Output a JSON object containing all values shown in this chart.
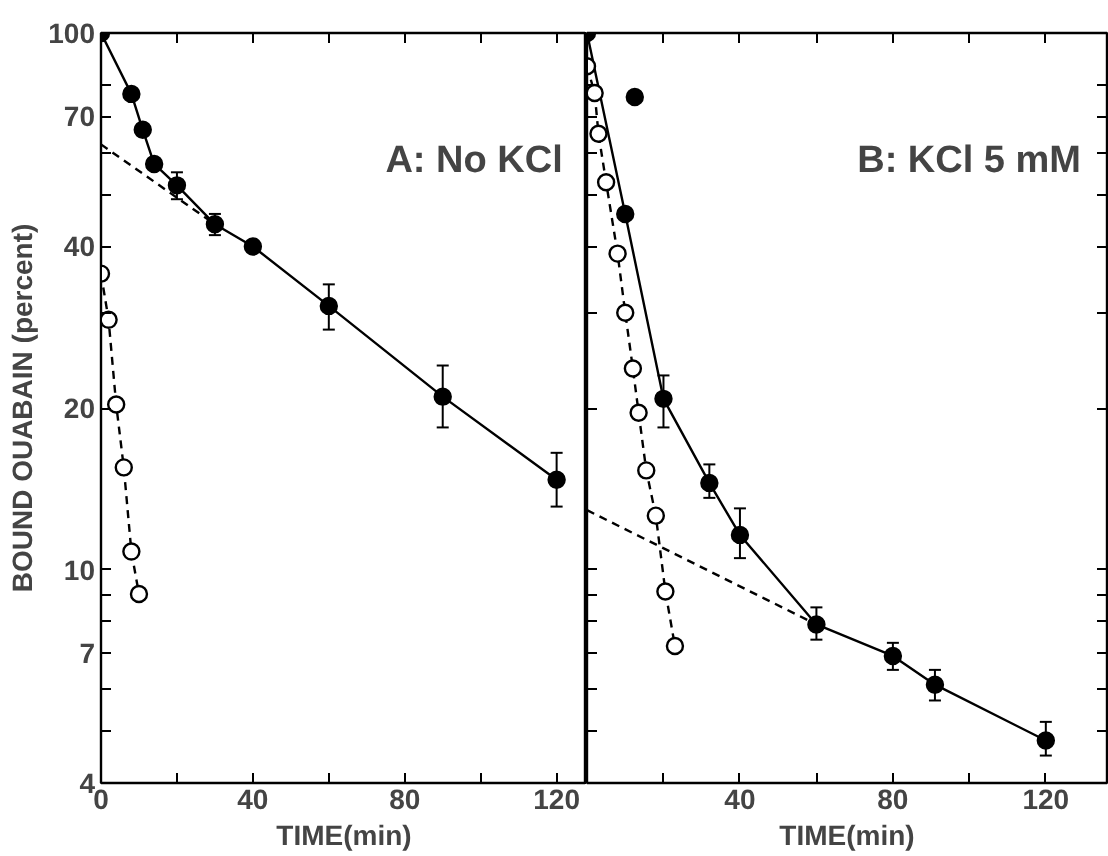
{
  "chart_data": [
    {
      "type": "line",
      "ylabel": "BOUND OUABAIN (percent)",
      "xlabel": "TIME(min)",
      "log": "y",
      "grid": false,
      "annotations": [
        "A: No KCl"
      ],
      "xlim": [
        0,
        128
      ],
      "ylim": [
        4,
        100
      ],
      "xticks": [
        0,
        {
          "value": 20,
          "label": null
        },
        40,
        {
          "value": 60,
          "label": null
        },
        80,
        {
          "value": 100,
          "label": null
        },
        120
      ],
      "yticks": [
        4,
        {
          "value": 5,
          "label": null
        },
        {
          "value": 6,
          "label": null
        },
        7,
        {
          "value": 8,
          "label": null
        },
        {
          "value": 9,
          "label": null
        },
        10,
        20,
        {
          "value": 30,
          "label": null
        },
        40,
        {
          "value": 50,
          "label": null
        },
        {
          "value": 60,
          "label": null
        },
        70,
        {
          "value": 80,
          "label": null
        },
        100
      ],
      "series": [
        {
          "color": "#000000",
          "marker": "circle",
          "line_style": "solid",
          "x": [
            0,
            8,
            11,
            14,
            20,
            30,
            40,
            60,
            90,
            120
          ],
          "values": [
            100,
            77,
            66,
            57,
            52,
            44,
            40,
            31,
            21,
            14.7
          ],
          "errors": [
            null,
            null,
            null,
            null,
            [
              49,
              55
            ],
            [
              42,
              46
            ],
            null,
            [
              28,
              34
            ],
            [
              18.4,
              24
            ],
            [
              13.1,
              16.5
            ]
          ]
        },
        {
          "color": "#000000",
          "marker": "circle",
          "line_style": "dashed",
          "x": [
            0,
            2,
            4,
            6,
            8,
            10
          ],
          "values": [
            35.6,
            29.2,
            20.3,
            15.5,
            10.8,
            9.0
          ]
        },
        {
          "color": "#000000",
          "marker": "none",
          "line_style": "dashed",
          "x": [
            0,
            30
          ],
          "values": [
            62,
            44
          ]
        }
      ]
    },
    {
      "type": "line",
      "xlabel": "TIME(min)",
      "log": "y",
      "grid": false,
      "tick_labels": "x",
      "annotations": [
        "B: KCl 5 mM"
      ],
      "xlim": [
        0,
        136
      ],
      "ylim": [
        4,
        100
      ],
      "xticks": [
        {
          "value": 0,
          "label": null
        },
        {
          "value": 20,
          "label": null
        },
        40,
        {
          "value": 60,
          "label": null
        },
        80,
        {
          "value": 100,
          "label": null
        },
        120
      ],
      "yticks": [
        {
          "value": 4,
          "label": null
        },
        {
          "value": 5,
          "label": null
        },
        {
          "value": 6,
          "label": null
        },
        {
          "value": 7,
          "label": null
        },
        {
          "value": 8,
          "label": null
        },
        {
          "value": 9,
          "label": null
        },
        {
          "value": 10,
          "label": null
        },
        {
          "value": 20,
          "label": null
        },
        {
          "value": 30,
          "label": null
        },
        {
          "value": 40,
          "label": null
        },
        {
          "value": 50,
          "label": null
        },
        {
          "value": 60,
          "label": null
        },
        {
          "value": 70,
          "label": null
        },
        {
          "value": 80,
          "label": null
        },
        {
          "value": 100,
          "label": null
        }
      ],
      "series": [
        {
          "color": "#000000",
          "marker": "circle",
          "line_style": "solid",
          "x": [
            0,
            10,
            20,
            32,
            40,
            60,
            80,
            91,
            120
          ],
          "values": [
            100,
            46,
            20.8,
            14.5,
            11.6,
            7.9,
            6.9,
            6.1,
            4.8
          ],
          "errors": [
            null,
            null,
            [
              18.4,
              23
            ],
            [
              13.6,
              15.7
            ],
            [
              10.5,
              13
            ],
            [
              7.4,
              8.5
            ],
            [
              6.5,
              7.3
            ],
            [
              5.7,
              6.5
            ],
            [
              4.5,
              5.2
            ]
          ]
        },
        {
          "type": "scatter",
          "color": "#000000",
          "marker": "circle",
          "x": [
            12.5
          ],
          "values": [
            76
          ]
        },
        {
          "color": "#000000",
          "marker": "circle",
          "line_style": "dashed",
          "x": [
            0,
            2,
            3,
            5,
            8,
            10,
            12,
            13.5,
            15.5,
            18,
            20.5,
            23
          ],
          "values": [
            86.7,
            77.3,
            64.9,
            52.7,
            38.8,
            30.1,
            23.7,
            19.6,
            15.3,
            12.6,
            9.1,
            7.2
          ]
        },
        {
          "color": "#000000",
          "marker": "none",
          "line_style": "dashed",
          "x": [
            0,
            60
          ],
          "values": [
            12.9,
            7.9
          ]
        }
      ]
    }
  ]
}
